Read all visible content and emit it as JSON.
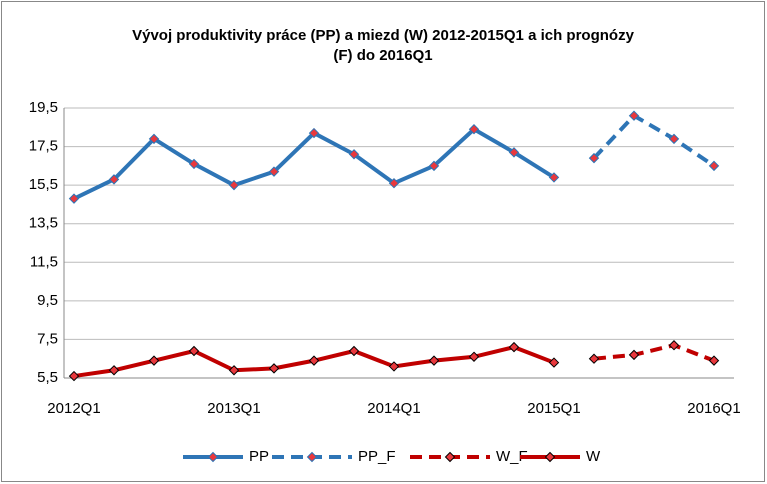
{
  "chart_data": {
    "type": "line",
    "title": [
      "Vývoj produktivity práce (PP) a miezd (W) 2012-2015Q1 a ich prognózy",
      "(F) do 2016Q1"
    ],
    "categories": [
      "2012Q1",
      null,
      null,
      null,
      "2013Q1",
      null,
      null,
      null,
      "2014Q1",
      null,
      null,
      null,
      "2015Q1",
      null,
      null,
      null,
      "2016Q1"
    ],
    "series": [
      {
        "name": "PP",
        "color": "#2E75B6",
        "marker_color": "#E8383D",
        "line_style": "solid",
        "values": [
          14.8,
          15.8,
          17.9,
          16.6,
          15.5,
          16.2,
          18.2,
          17.1,
          15.6,
          16.5,
          18.4,
          17.2,
          15.9,
          null,
          null,
          null,
          null
        ]
      },
      {
        "name": "PP_F",
        "color": "#2E75B6",
        "marker_color": "#E8383D",
        "line_style": "dashed",
        "values": [
          null,
          null,
          null,
          null,
          null,
          null,
          null,
          null,
          null,
          null,
          null,
          null,
          null,
          16.9,
          19.1,
          17.9,
          16.5
        ]
      },
      {
        "name": "W_F",
        "color": "#C00000",
        "marker_color": "#E8383D",
        "line_style": "dashed",
        "values": [
          null,
          null,
          null,
          null,
          null,
          null,
          null,
          null,
          null,
          null,
          null,
          null,
          null,
          6.5,
          6.7,
          7.2,
          6.4
        ]
      },
      {
        "name": "W",
        "color": "#C00000",
        "marker_color": "#E8383D",
        "line_style": "solid",
        "values": [
          5.6,
          5.9,
          6.4,
          6.9,
          5.9,
          6.0,
          6.4,
          6.9,
          6.1,
          6.4,
          6.6,
          7.1,
          6.3,
          null,
          null,
          null,
          null
        ]
      }
    ],
    "ylim": [
      5.5,
      19.5
    ],
    "yticks": [
      {
        "value": 5.5,
        "label": "5,5"
      },
      {
        "value": 7.5,
        "label": "7,5"
      },
      {
        "value": 9.5,
        "label": "9,5"
      },
      {
        "value": 11.5,
        "label": "11,5"
      },
      {
        "value": 13.5,
        "label": "13,5"
      },
      {
        "value": 15.5,
        "label": "15,5"
      },
      {
        "value": 17.5,
        "label": "17,5"
      },
      {
        "value": 19.5,
        "label": "19,5"
      }
    ],
    "grid": true,
    "legend": "bottom"
  }
}
